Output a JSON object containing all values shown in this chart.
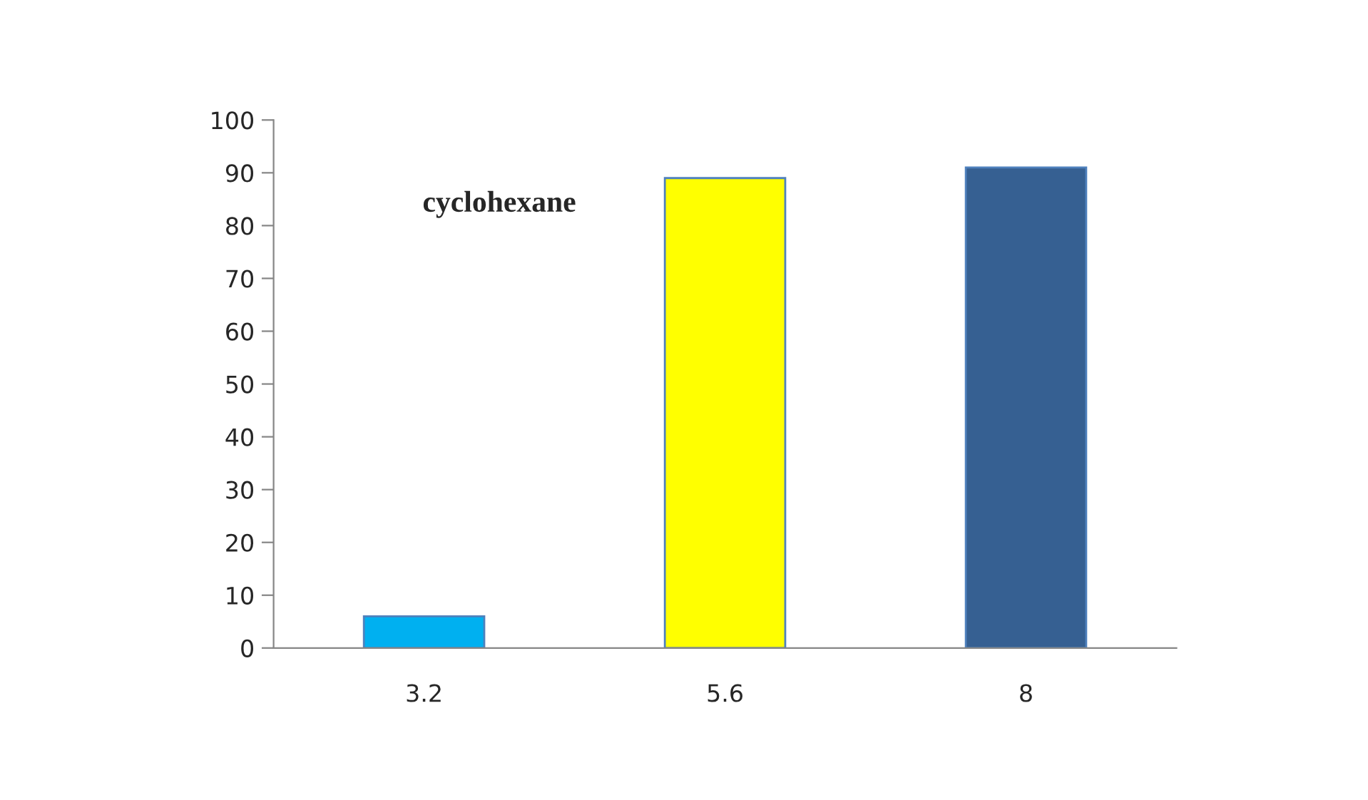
{
  "chart_data": {
    "type": "bar",
    "categories": [
      "3.2",
      "5.6",
      "8"
    ],
    "values": [
      6,
      89,
      91
    ],
    "colors": [
      "#00b0f0",
      "#ffff00",
      "#366092"
    ],
    "ylim": [
      0,
      100
    ],
    "yticks": [
      0,
      10,
      20,
      30,
      40,
      50,
      60,
      70,
      80,
      90,
      100
    ],
    "grid": false,
    "legend": false,
    "annotations": [
      "cyclohexane"
    ]
  }
}
